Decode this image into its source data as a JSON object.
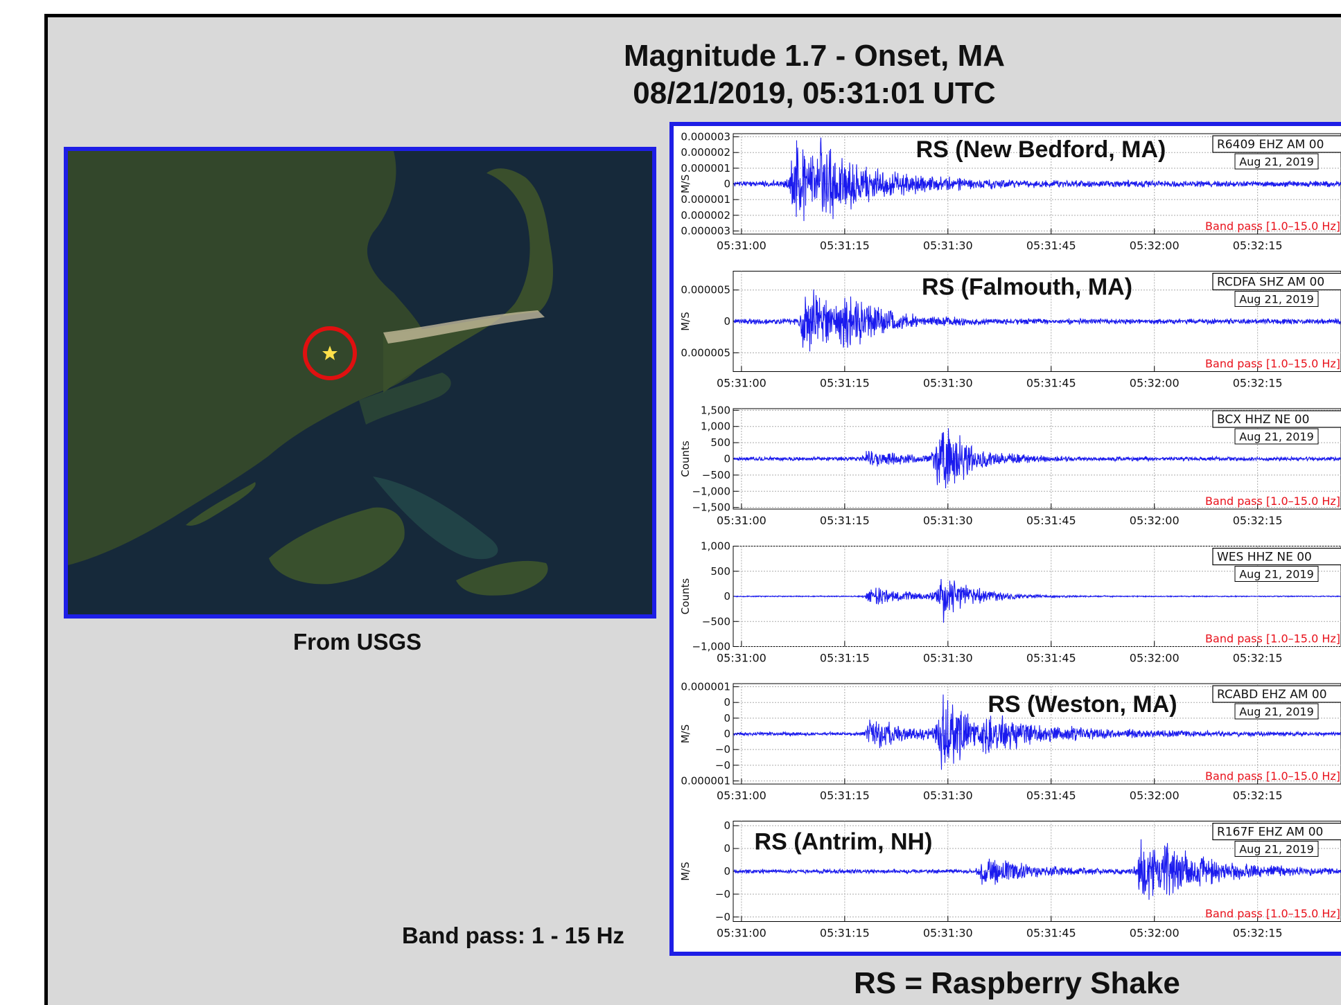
{
  "slide": {
    "title_line1": "Magnitude 1.7 - Onset, MA",
    "title_line2": "08/21/2019, 05:31:01 UTC",
    "map_caption": "From USGS",
    "band_note": "Band pass: 1 - 15 Hz",
    "footer": "RS = Raspberry Shake"
  },
  "colors": {
    "frame": "#1e1ee6",
    "trace": "#1a1aee",
    "bandpass_text": "#e8101a",
    "marker_circle": "#e01010",
    "epicenter_star": "#ffe14a"
  },
  "map": {
    "marker": "red-circle-with-star",
    "epicenter_lonlat": [
      -70.62,
      41.76
    ]
  },
  "chart_data": {
    "type": "line",
    "subtype": "seismogram-stack",
    "x_label": "",
    "x_ticks": [
      "05:31:00",
      "05:31:15",
      "05:31:30",
      "05:31:45",
      "05:32:00",
      "05:32:15"
    ],
    "x_range_seconds_after_0531": [
      0,
      86
    ],
    "grid": true,
    "bandpass_label": "Band pass [1.0–15.0 Hz]",
    "date_label": "Aug 21, 2019",
    "stations": [
      {
        "name": "RS (New Bedford, MA)",
        "channel": "R6409 EHZ AM 00",
        "ylabel": "M/S",
        "yticks": [
          "0.000003",
          "0.000002",
          "0.000001",
          "0",
          "0.000001",
          "0.000002",
          "0.000003"
        ],
        "ytick_values": [
          3,
          2,
          1,
          0,
          -1,
          -2,
          -3
        ],
        "yrange": [
          -3.2,
          3.2
        ],
        "noise": 0.22,
        "bursts": [
          {
            "t": 7.5,
            "amp": 3.3,
            "decay": 6.5
          },
          {
            "t": 11.5,
            "amp": 1.1,
            "decay": 10
          }
        ],
        "seed": 11
      },
      {
        "name": "RS (Falmouth, MA)",
        "channel": "RCDFA SHZ AM 00",
        "ylabel": "M/S",
        "yticks": [
          "0.000005",
          "0",
          "0.000005"
        ],
        "ytick_values": [
          5,
          0,
          -5
        ],
        "yrange": [
          -8,
          8
        ],
        "noise": 0.5,
        "bursts": [
          {
            "t": 9,
            "amp": 6.8,
            "decay": 5.5
          },
          {
            "t": 14.5,
            "amp": 3,
            "decay": 6
          }
        ],
        "seed": 23
      },
      {
        "name": "",
        "channel": "BCX HHZ NE 00",
        "ylabel": "Counts",
        "yticks": [
          "1,500",
          "1,000",
          "500",
          "0",
          "−500",
          "−1,000",
          "−1,500"
        ],
        "ytick_values": [
          1500,
          1000,
          500,
          0,
          -500,
          -1000,
          -1500
        ],
        "yrange": [
          -1550,
          1550
        ],
        "noise": 70,
        "bursts": [
          {
            "t": 18,
            "amp": 260,
            "decay": 7
          },
          {
            "t": 28.5,
            "amp": 1450,
            "decay": 2.5
          },
          {
            "t": 30,
            "amp": 450,
            "decay": 6
          }
        ],
        "seed": 37
      },
      {
        "name": "",
        "channel": "WES HHZ NE 00",
        "ylabel": "Counts",
        "yticks": [
          "1,000",
          "500",
          "0",
          "−500",
          "−1,000"
        ],
        "ytick_values": [
          1000,
          500,
          0,
          -500,
          -1000
        ],
        "yrange": [
          -1000,
          1000
        ],
        "noise": 12,
        "bursts": [
          {
            "t": 18.5,
            "amp": 200,
            "decay": 8
          },
          {
            "t": 29,
            "amp": 560,
            "decay": 4
          }
        ],
        "seed": 41
      },
      {
        "name": "RS (Weston, MA)",
        "channel": "RCABD EHZ AM 00",
        "ylabel": "M/S",
        "yticks": [
          "0.000001",
          "0",
          "0",
          "0",
          "−0",
          "−0",
          "0.000001"
        ],
        "ytick_values": [
          3,
          2,
          1,
          0,
          -1,
          -2,
          -3
        ],
        "yrange": [
          -3.2,
          3.2
        ],
        "noise": 0.13,
        "bursts": [
          {
            "t": 18.5,
            "amp": 1.1,
            "decay": 7
          },
          {
            "t": 29,
            "amp": 3.2,
            "decay": 4
          },
          {
            "t": 35,
            "amp": 0.9,
            "decay": 14
          }
        ],
        "seed": 53
      },
      {
        "name": "RS (Antrim, NH)",
        "channel": "R167F EHZ AM 00",
        "ylabel": "M/S",
        "yticks": [
          "0",
          "0",
          "0",
          "−0",
          "−0"
        ],
        "ytick_values": [
          2,
          1,
          0,
          -1,
          -2
        ],
        "yrange": [
          -2.2,
          2.2
        ],
        "noise": 0.1,
        "bursts": [
          {
            "t": 35,
            "amp": 0.85,
            "decay": 6
          },
          {
            "t": 58,
            "amp": 2.1,
            "decay": 3
          },
          {
            "t": 61.5,
            "amp": 0.9,
            "decay": 10
          }
        ],
        "seed": 67
      }
    ]
  }
}
